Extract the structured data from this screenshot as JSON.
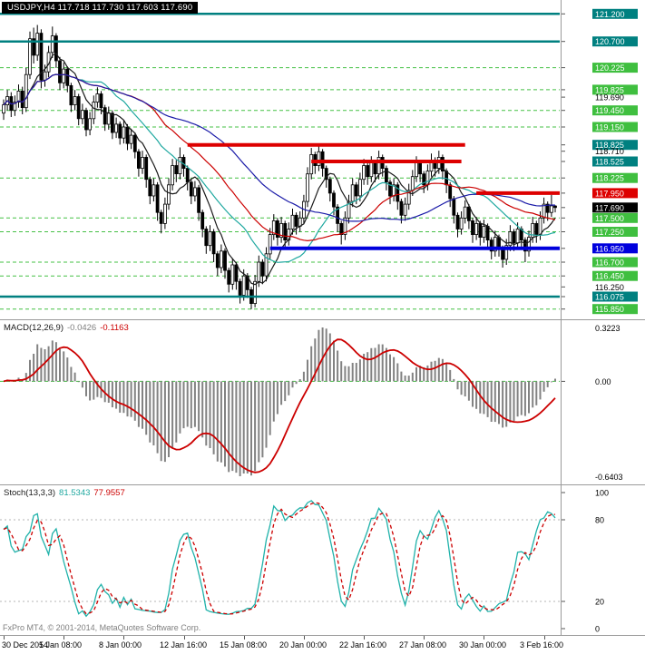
{
  "window": {
    "title": "USDJPY,H4 117.718 117.730 117.603 117.690"
  },
  "footer": {
    "credit": "FxPro MT4, © 2001-2014, MetaQuotes Software Corp."
  },
  "colors": {
    "teal": "#008080",
    "light_green": "#3fbf3f",
    "red": "#dd0000",
    "blue": "#0000dd",
    "current": "#000000",
    "grid_green": "#44c044",
    "candle_outline": "#000000",
    "histogram_gray": "#828282",
    "signal_red": "#cc0000",
    "stoch_k": "#20b2aa",
    "stoch_d": "#cc0000",
    "level_gray": "#b5b5b5",
    "axis_text": "#000000"
  },
  "chart_data": {
    "type": "candlestick",
    "symbol": "USDJPY",
    "timeframe": "H4",
    "current_ohlc": {
      "open": "117.718",
      "high": "117.730",
      "low": "117.603",
      "close": "117.690"
    },
    "price_axis": {
      "min": 115.68,
      "max": 121.32,
      "labels": [
        {
          "price": 121.2,
          "style": "teal"
        },
        {
          "price": 120.7,
          "style": "teal"
        },
        {
          "price": 120.225,
          "style": "green"
        },
        {
          "price": 119.825,
          "style": "green"
        },
        {
          "price": 119.69,
          "style": "plain"
        },
        {
          "price": 119.45,
          "style": "green"
        },
        {
          "price": 119.15,
          "style": "green"
        },
        {
          "price": 118.825,
          "style": "teal"
        },
        {
          "price": 118.71,
          "style": "plain"
        },
        {
          "price": 118.525,
          "style": "teal"
        },
        {
          "price": 118.225,
          "style": "green"
        },
        {
          "price": 117.95,
          "style": "red"
        },
        {
          "price": 117.69,
          "style": "current"
        },
        {
          "price": 117.5,
          "style": "green"
        },
        {
          "price": 117.25,
          "style": "green"
        },
        {
          "price": 116.95,
          "style": "blue"
        },
        {
          "price": 116.7,
          "style": "green"
        },
        {
          "price": 116.45,
          "style": "green"
        },
        {
          "price": 116.25,
          "style": "plain"
        },
        {
          "price": 116.075,
          "style": "teal"
        },
        {
          "price": 115.85,
          "style": "green"
        }
      ]
    },
    "grid_levels": [
      120.225,
      119.825,
      119.45,
      119.15,
      118.225,
      117.5,
      117.25,
      116.7,
      116.45,
      115.85
    ],
    "lines": [
      {
        "name": "resistance-121200",
        "price": 121.2,
        "color": "teal",
        "width": 2.5,
        "from_bar": null,
        "to_bar": null
      },
      {
        "name": "resistance-120700",
        "price": 120.7,
        "color": "teal",
        "width": 2.5,
        "from_bar": null,
        "to_bar": null
      },
      {
        "name": "support-116075",
        "price": 116.075,
        "color": "teal",
        "width": 2.5,
        "from_bar": null,
        "to_bar": null
      },
      {
        "name": "resistance-118825",
        "price": 118.825,
        "color": "red",
        "width": 4,
        "from_bar": 49,
        "to_bar": 123
      },
      {
        "name": "resistance-118525",
        "price": 118.525,
        "color": "red",
        "width": 4,
        "from_bar": 82,
        "to_bar": 122
      },
      {
        "name": "resistance-117950",
        "price": 117.95,
        "color": "red",
        "width": 4,
        "from_bar": 126,
        "to_bar": null
      },
      {
        "name": "support-116950",
        "price": 116.95,
        "color": "blue",
        "width": 4,
        "from_bar": 71,
        "to_bar": null
      }
    ],
    "moving_averages": [
      {
        "period": 8,
        "color": "#1a1a1a"
      },
      {
        "period": 21,
        "color": "#1fa8a0"
      },
      {
        "period": 34,
        "color": "#cc0000"
      },
      {
        "period": 55,
        "color": "#1a1aa8"
      }
    ],
    "x_labels": [
      {
        "text": "30 Dec 2014",
        "bar": 0
      },
      {
        "text": "5 Jan 08:00",
        "bar": 16
      },
      {
        "text": "8 Jan 00:00",
        "bar": 32
      },
      {
        "text": "12 Jan 16:00",
        "bar": 48
      },
      {
        "text": "15 Jan 08:00",
        "bar": 64
      },
      {
        "text": "20 Jan 00:00",
        "bar": 80
      },
      {
        "text": "22 Jan 16:00",
        "bar": 96
      },
      {
        "text": "27 Jan 08:00",
        "bar": 112
      },
      {
        "text": "30 Jan 00:00",
        "bar": 128
      },
      {
        "text": "3 Feb 16:00",
        "bar": 144
      }
    ],
    "macd": {
      "label": "MACD(12,26,9)",
      "value_main": "-0.0426",
      "value_signal": "-0.1163",
      "fast": 12,
      "slow": 26,
      "signal": 9,
      "axis_top": "0.3223",
      "axis_zero": "0.00",
      "axis_bottom": "-0.6403"
    },
    "stoch": {
      "label": "Stoch(13,3,3)",
      "value_k": "81.5343",
      "value_d": "77.9557",
      "k_period": 13,
      "slowing": 3,
      "d_period": 3,
      "axis": [
        100,
        80,
        20,
        0
      ],
      "levels": [
        80,
        20
      ]
    },
    "candles": [
      [
        119.4,
        119.65,
        119.28,
        119.55
      ],
      [
        119.55,
        119.82,
        119.45,
        119.7
      ],
      [
        119.7,
        119.78,
        119.33,
        119.45
      ],
      [
        119.45,
        119.72,
        119.35,
        119.6
      ],
      [
        119.6,
        119.92,
        119.5,
        119.8
      ],
      [
        119.8,
        119.88,
        119.38,
        119.5
      ],
      [
        119.5,
        120.22,
        119.42,
        120.1
      ],
      [
        120.1,
        120.88,
        120.02,
        120.75
      ],
      [
        120.75,
        120.95,
        120.3,
        120.45
      ],
      [
        120.45,
        121.0,
        120.35,
        120.85
      ],
      [
        120.85,
        120.92,
        119.85,
        120.0
      ],
      [
        120.0,
        120.28,
        119.88,
        120.15
      ],
      [
        120.15,
        120.62,
        120.05,
        120.5
      ],
      [
        120.5,
        120.97,
        120.4,
        120.8
      ],
      [
        120.8,
        120.85,
        120.22,
        120.35
      ],
      [
        120.35,
        120.42,
        119.82,
        119.95
      ],
      [
        119.95,
        120.32,
        119.85,
        120.2
      ],
      [
        120.2,
        120.25,
        119.78,
        119.9
      ],
      [
        119.9,
        119.95,
        119.42,
        119.55
      ],
      [
        119.55,
        119.82,
        119.45,
        119.7
      ],
      [
        119.7,
        119.75,
        119.18,
        119.3
      ],
      [
        119.3,
        119.57,
        119.2,
        119.45
      ],
      [
        119.45,
        119.5,
        118.98,
        119.1
      ],
      [
        119.1,
        119.42,
        119.0,
        119.3
      ],
      [
        119.3,
        119.72,
        119.2,
        119.6
      ],
      [
        119.6,
        119.87,
        119.5,
        119.75
      ],
      [
        119.75,
        119.8,
        119.38,
        119.5
      ],
      [
        119.5,
        119.55,
        119.08,
        119.2
      ],
      [
        119.2,
        119.52,
        119.1,
        119.4
      ],
      [
        119.4,
        119.45,
        118.93,
        119.05
      ],
      [
        119.05,
        119.32,
        118.95,
        119.2
      ],
      [
        119.2,
        119.25,
        118.83,
        118.95
      ],
      [
        118.95,
        119.27,
        118.85,
        119.15
      ],
      [
        119.15,
        119.2,
        118.73,
        118.85
      ],
      [
        118.85,
        119.12,
        118.75,
        119.0
      ],
      [
        119.0,
        119.05,
        118.58,
        118.7
      ],
      [
        118.7,
        118.75,
        118.25,
        118.4
      ],
      [
        118.4,
        118.72,
        118.3,
        118.6
      ],
      [
        118.6,
        118.65,
        118.05,
        118.2
      ],
      [
        118.2,
        118.25,
        117.75,
        117.9
      ],
      [
        117.9,
        118.22,
        117.8,
        118.1
      ],
      [
        118.1,
        118.15,
        117.45,
        117.6
      ],
      [
        117.6,
        117.65,
        117.22,
        117.4
      ],
      [
        117.4,
        117.87,
        117.3,
        117.75
      ],
      [
        117.75,
        118.22,
        117.65,
        118.1
      ],
      [
        118.1,
        118.57,
        118.0,
        118.45
      ],
      [
        118.45,
        118.55,
        118.15,
        118.3
      ],
      [
        118.3,
        118.78,
        118.2,
        118.6
      ],
      [
        118.6,
        118.65,
        118.25,
        118.4
      ],
      [
        118.4,
        118.45,
        118.0,
        118.15
      ],
      [
        118.15,
        118.2,
        117.75,
        117.9
      ],
      [
        117.9,
        118.17,
        117.8,
        118.05
      ],
      [
        118.05,
        118.1,
        117.45,
        117.6
      ],
      [
        117.6,
        117.65,
        117.15,
        117.3
      ],
      [
        117.3,
        117.35,
        116.85,
        117.0
      ],
      [
        117.0,
        117.37,
        116.9,
        117.25
      ],
      [
        117.25,
        117.3,
        116.7,
        116.85
      ],
      [
        116.85,
        116.9,
        116.45,
        116.6
      ],
      [
        116.6,
        117.02,
        116.5,
        116.9
      ],
      [
        116.9,
        116.95,
        116.4,
        116.55
      ],
      [
        116.55,
        116.6,
        116.15,
        116.3
      ],
      [
        116.3,
        116.77,
        116.2,
        116.65
      ],
      [
        116.65,
        116.7,
        116.2,
        116.35
      ],
      [
        116.35,
        116.4,
        115.95,
        116.1
      ],
      [
        116.1,
        116.57,
        116.0,
        116.45
      ],
      [
        116.45,
        116.5,
        116.05,
        116.2
      ],
      [
        116.2,
        116.25,
        115.85,
        115.95
      ],
      [
        115.95,
        116.47,
        115.88,
        116.35
      ],
      [
        116.35,
        116.82,
        116.25,
        116.7
      ],
      [
        116.7,
        116.75,
        116.3,
        116.45
      ],
      [
        116.45,
        116.97,
        116.35,
        116.85
      ],
      [
        116.85,
        117.32,
        116.75,
        117.2
      ],
      [
        117.2,
        117.57,
        117.1,
        117.45
      ],
      [
        117.45,
        117.5,
        117.0,
        117.15
      ],
      [
        117.15,
        117.52,
        117.05,
        117.4
      ],
      [
        117.4,
        117.45,
        116.95,
        117.1
      ],
      [
        117.1,
        117.42,
        117.0,
        117.3
      ],
      [
        117.3,
        117.67,
        117.2,
        117.55
      ],
      [
        117.55,
        117.6,
        117.2,
        117.35
      ],
      [
        117.35,
        117.62,
        117.25,
        117.5
      ],
      [
        117.5,
        117.92,
        117.4,
        117.8
      ],
      [
        117.8,
        118.42,
        117.7,
        118.3
      ],
      [
        118.3,
        118.77,
        118.2,
        118.65
      ],
      [
        118.65,
        118.7,
        118.3,
        118.45
      ],
      [
        118.45,
        118.82,
        118.35,
        118.7
      ],
      [
        118.7,
        118.75,
        118.25,
        118.4
      ],
      [
        118.4,
        118.45,
        118.05,
        118.2
      ],
      [
        118.2,
        118.25,
        117.8,
        117.95
      ],
      [
        117.95,
        118.0,
        117.55,
        117.7
      ],
      [
        117.7,
        117.75,
        117.25,
        117.4
      ],
      [
        117.4,
        117.45,
        117.02,
        117.2
      ],
      [
        117.2,
        117.62,
        117.1,
        117.5
      ],
      [
        117.5,
        117.92,
        117.4,
        117.8
      ],
      [
        117.8,
        118.22,
        117.7,
        118.1
      ],
      [
        118.1,
        118.15,
        117.75,
        117.9
      ],
      [
        117.9,
        118.32,
        117.8,
        118.2
      ],
      [
        118.2,
        118.57,
        118.1,
        118.45
      ],
      [
        118.45,
        118.5,
        118.1,
        118.25
      ],
      [
        118.25,
        118.62,
        118.15,
        118.5
      ],
      [
        118.5,
        118.55,
        118.15,
        118.3
      ],
      [
        118.3,
        118.72,
        118.2,
        118.6
      ],
      [
        118.6,
        118.65,
        118.25,
        118.4
      ],
      [
        118.4,
        118.45,
        118.0,
        118.15
      ],
      [
        118.15,
        118.2,
        117.75,
        117.9
      ],
      [
        117.9,
        118.22,
        117.8,
        118.1
      ],
      [
        118.1,
        118.15,
        117.65,
        117.8
      ],
      [
        117.8,
        117.85,
        117.4,
        117.55
      ],
      [
        117.55,
        117.87,
        117.45,
        117.75
      ],
      [
        117.75,
        118.12,
        117.65,
        118.0
      ],
      [
        118.0,
        118.37,
        117.9,
        118.25
      ],
      [
        118.25,
        118.62,
        118.15,
        118.5
      ],
      [
        118.5,
        118.55,
        118.15,
        118.3
      ],
      [
        118.3,
        118.35,
        117.95,
        118.1
      ],
      [
        118.1,
        118.47,
        118.0,
        118.35
      ],
      [
        118.35,
        118.67,
        118.25,
        118.55
      ],
      [
        118.55,
        118.6,
        118.25,
        118.4
      ],
      [
        118.4,
        118.72,
        118.3,
        118.6
      ],
      [
        118.6,
        118.65,
        118.2,
        118.35
      ],
      [
        118.35,
        118.4,
        117.95,
        118.1
      ],
      [
        118.1,
        118.15,
        117.7,
        117.85
      ],
      [
        117.85,
        117.9,
        117.4,
        117.55
      ],
      [
        117.55,
        117.6,
        117.15,
        117.3
      ],
      [
        117.3,
        117.62,
        117.2,
        117.5
      ],
      [
        117.5,
        117.82,
        117.4,
        117.7
      ],
      [
        117.7,
        117.75,
        117.3,
        117.45
      ],
      [
        117.45,
        117.5,
        117.05,
        117.2
      ],
      [
        117.2,
        117.52,
        117.1,
        117.4
      ],
      [
        117.4,
        117.45,
        117.0,
        117.15
      ],
      [
        117.15,
        117.47,
        117.05,
        117.35
      ],
      [
        117.35,
        117.4,
        116.95,
        117.1
      ],
      [
        117.1,
        117.15,
        116.75,
        116.9
      ],
      [
        116.9,
        117.27,
        116.8,
        117.15
      ],
      [
        117.15,
        117.2,
        116.8,
        116.95
      ],
      [
        116.95,
        117.0,
        116.6,
        116.75
      ],
      [
        116.75,
        117.12,
        116.65,
        117.0
      ],
      [
        117.0,
        117.37,
        116.9,
        117.25
      ],
      [
        117.25,
        117.3,
        116.9,
        117.05
      ],
      [
        117.05,
        117.42,
        116.95,
        117.3
      ],
      [
        117.3,
        117.35,
        116.95,
        117.1
      ],
      [
        117.1,
        117.15,
        116.7,
        116.9
      ],
      [
        116.9,
        117.27,
        116.8,
        117.15
      ],
      [
        117.15,
        117.52,
        117.05,
        117.4
      ],
      [
        117.4,
        117.45,
        117.05,
        117.2
      ],
      [
        117.2,
        117.62,
        117.1,
        117.5
      ],
      [
        117.5,
        117.87,
        117.4,
        117.75
      ],
      [
        117.75,
        117.8,
        117.45,
        117.6
      ],
      [
        117.6,
        117.92,
        117.52,
        117.72
      ],
      [
        117.718,
        117.73,
        117.603,
        117.69
      ]
    ]
  }
}
